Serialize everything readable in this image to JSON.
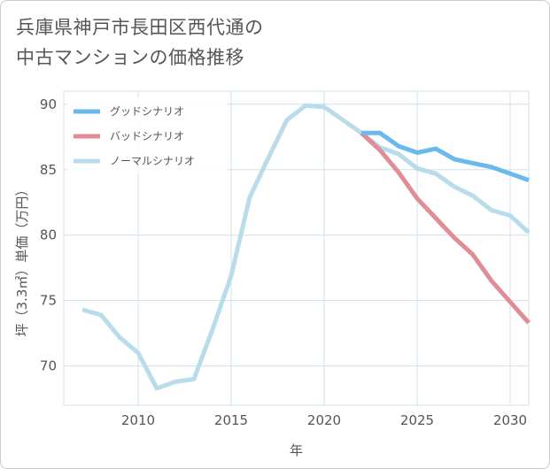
{
  "title": {
    "line1": "兵庫県神戸市長田区西代通の",
    "line2": "中古マンションの価格推移"
  },
  "colors": {
    "good": "#6bb8ec",
    "bad": "#e08d97",
    "normal": "#b9dcea",
    "grid": "#cfe0ea",
    "axis_text": "#555555"
  },
  "chart_data": {
    "type": "line",
    "xlabel": "年",
    "ylabel": "坪（3.3㎡）単価（万円）",
    "xlim": [
      2006,
      2031
    ],
    "ylim": [
      67,
      91
    ],
    "xticks": [
      2010,
      2015,
      2020,
      2025,
      2030
    ],
    "yticks": [
      70,
      75,
      80,
      85,
      90
    ],
    "grid": true,
    "legend_position": "top-left",
    "series": [
      {
        "name": "グッドシナリオ",
        "color_key": "good",
        "x": [
          2022,
          2023,
          2024,
          2025,
          2026,
          2027,
          2028,
          2029,
          2030,
          2031
        ],
        "y": [
          87.8,
          87.8,
          86.8,
          86.3,
          86.6,
          85.8,
          85.5,
          85.2,
          84.7,
          84.2
        ]
      },
      {
        "name": "バッドシナリオ",
        "color_key": "bad",
        "x": [
          2022,
          2023,
          2024,
          2025,
          2026,
          2027,
          2028,
          2029,
          2030,
          2031
        ],
        "y": [
          87.8,
          86.5,
          84.8,
          82.8,
          81.3,
          79.8,
          78.5,
          76.5,
          74.9,
          73.3
        ]
      },
      {
        "name": "ノーマルシナリオ",
        "color_key": "normal",
        "x": [
          2007,
          2008,
          2009,
          2010,
          2011,
          2012,
          2013,
          2014,
          2015,
          2016,
          2017,
          2018,
          2019,
          2020,
          2021,
          2022,
          2023,
          2024,
          2025,
          2026,
          2027,
          2028,
          2029,
          2030,
          2031
        ],
        "y": [
          74.3,
          73.9,
          72.2,
          71.0,
          68.3,
          68.8,
          69.0,
          72.8,
          76.9,
          82.9,
          85.9,
          88.8,
          89.9,
          89.8,
          88.8,
          87.8,
          86.7,
          86.2,
          85.1,
          84.7,
          83.7,
          83.0,
          81.9,
          81.5,
          80.2
        ]
      }
    ]
  }
}
